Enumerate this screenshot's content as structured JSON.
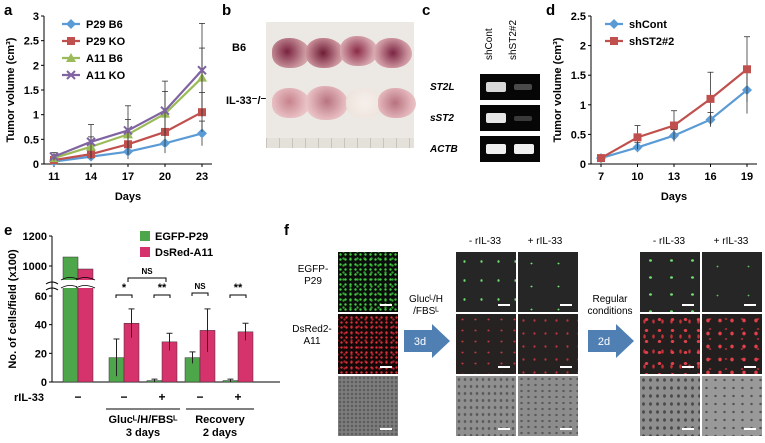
{
  "panels": {
    "a": "a",
    "b": "b",
    "c": "c",
    "d": "d",
    "e": "e",
    "f": "f"
  },
  "chart_data": [
    {
      "id": "a",
      "type": "line",
      "ylabel": "Tumor volume (cm³)",
      "xlabel": "Days",
      "x": [
        11,
        14,
        17,
        20,
        23
      ],
      "ylim": [
        0,
        3
      ],
      "yticks": [
        "0",
        "0.5",
        "1",
        "1.5",
        "2",
        "2.5",
        "3"
      ],
      "legend": "top-left",
      "series": [
        {
          "name": "P29 B6",
          "color": "#5b9bd5",
          "marker": "diamond",
          "values": [
            0.05,
            0.15,
            0.25,
            0.42,
            0.62
          ],
          "err": [
            0.03,
            0.08,
            0.15,
            0.2,
            0.25
          ]
        },
        {
          "name": "P29 KO",
          "color": "#c0504d",
          "marker": "square",
          "values": [
            0.08,
            0.2,
            0.4,
            0.65,
            1.05
          ],
          "err": [
            0.04,
            0.1,
            0.2,
            0.3,
            0.4
          ]
        },
        {
          "name": "A11 B6",
          "color": "#9bbb59",
          "marker": "triangle",
          "values": [
            0.12,
            0.35,
            0.6,
            1.02,
            1.75
          ],
          "err": [
            0.06,
            0.2,
            0.3,
            0.45,
            0.6
          ]
        },
        {
          "name": "A11 KO",
          "color": "#8064a2",
          "marker": "x",
          "values": [
            0.15,
            0.45,
            0.68,
            1.08,
            1.9
          ],
          "err": [
            0.08,
            0.35,
            0.5,
            0.6,
            0.95
          ]
        }
      ]
    },
    {
      "id": "d",
      "type": "line",
      "ylabel": "Tumor volume (cm³)",
      "xlabel": "Days",
      "x": [
        7,
        10,
        13,
        16,
        19
      ],
      "ylim": [
        0,
        2.5
      ],
      "yticks": [
        "0",
        "0.5",
        "1",
        "1.5",
        "2",
        "2.5"
      ],
      "legend": "top-left",
      "series": [
        {
          "name": "shCont",
          "color": "#5b9bd5",
          "marker": "diamond",
          "values": [
            0.1,
            0.28,
            0.48,
            0.75,
            1.25
          ],
          "err": [
            0.02,
            0.08,
            0.1,
            0.12,
            0.4
          ]
        },
        {
          "name": "shST2#2",
          "color": "#c0504d",
          "marker": "square",
          "values": [
            0.1,
            0.45,
            0.65,
            1.1,
            1.6
          ],
          "err": [
            0.03,
            0.2,
            0.25,
            0.45,
            0.55
          ]
        }
      ]
    },
    {
      "id": "e",
      "type": "bar",
      "ylabel": "No. of cells/field (x100)",
      "yticks_top": [
        "1000",
        "1200"
      ],
      "yticks_bottom": [
        "0",
        "20",
        "40",
        "60"
      ],
      "legend": "top-right",
      "series_names": [
        "EGFP-P29",
        "DsRed-A11"
      ],
      "colors": [
        "#4ea64a",
        "#d6336c"
      ],
      "groups": [
        {
          "rIL": "−",
          "values": [
            1060,
            980
          ],
          "err": [
            0,
            0
          ],
          "broken": true
        },
        {
          "rIL": "−",
          "values": [
            17,
            41
          ],
          "err": [
            13,
            10
          ],
          "sig": "*"
        },
        {
          "rIL": "+",
          "values": [
            1,
            28
          ],
          "err": [
            1,
            6
          ],
          "sig": "**"
        },
        {
          "rIL": "−",
          "values": [
            17,
            36
          ],
          "err": [
            4,
            15
          ],
          "sig": "NS"
        },
        {
          "rIL": "+",
          "values": [
            1,
            35
          ],
          "err": [
            1,
            6
          ],
          "sig": "**"
        }
      ],
      "bracket_ns": "NS",
      "row_label": "rIL-33",
      "cond1": [
        "Glucᴸ/H/FBSᴸ",
        "3 days"
      ],
      "cond2": [
        "Recovery",
        "2 days"
      ]
    }
  ],
  "panel_b": {
    "row1": "B6",
    "row2": "IL-33⁻/⁻"
  },
  "panel_c": {
    "lanes": [
      "shCont",
      "shST2#2"
    ],
    "genes": [
      "ST2L",
      "sST2",
      "ACTB"
    ]
  },
  "panel_f": {
    "row_labels": [
      "EGFP-\nP29",
      "DsRed2-\nA11"
    ],
    "row1": "EGFP-",
    "row1b": "P29",
    "row2": "DsRed2-",
    "row2b": "A11",
    "cond1": [
      "Glucᴸ/H",
      "/FBSᴸ"
    ],
    "arrow1": "3d",
    "cond2": [
      "Regular",
      "conditions"
    ],
    "arrow2": "2d",
    "col_minus": "- rIL-33",
    "col_plus": "+ rIL-33"
  }
}
